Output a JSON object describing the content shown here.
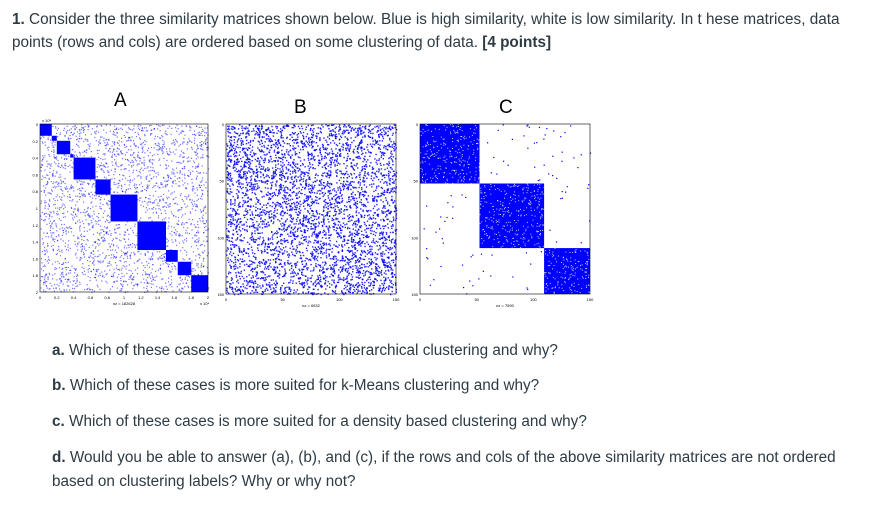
{
  "question": {
    "number": "1.",
    "text": "Consider the three similarity matrices shown below. Blue is high similarity, white is low similarity. In t hese matrices, data points (rows and cols) are ordered based on some clustering of data.",
    "points": "[4 points]"
  },
  "figures": [
    {
      "label": "A",
      "nz_text": "nz = 182628",
      "scale_top": "x 10⁴",
      "scale_right": "x 10⁴",
      "y_ticks": [
        "0",
        "0.2",
        "0.4",
        "0.6",
        "0.8",
        "1",
        "1.2",
        "1.4",
        "1.6",
        "1.8",
        "2"
      ],
      "x_ticks": [
        "0",
        "0.2",
        "0.4",
        "0.6",
        "0.8",
        "1",
        "1.2",
        "1.4",
        "1.6",
        "1.8",
        "2"
      ]
    },
    {
      "label": "B",
      "nz_text": "nz = 6932",
      "y_ticks": [
        "0",
        "50",
        "100",
        "150"
      ],
      "x_ticks": [
        "0",
        "50",
        "100",
        "150"
      ]
    },
    {
      "label": "C",
      "nz_text": "nz = 7590",
      "y_ticks": [
        "0",
        "50",
        "100",
        "150"
      ],
      "x_ticks": [
        "0",
        "50",
        "100",
        "150"
      ]
    }
  ],
  "subquestions": [
    {
      "letter": "a.",
      "text": "Which of these cases is more suited for hierarchical clustering and why?"
    },
    {
      "letter": "b.",
      "text": "Which of these cases is more suited for k-Means clustering and why?"
    },
    {
      "letter": "c.",
      "text": "Which of these cases is more suited for a density based clustering and why?"
    },
    {
      "letter": "d.",
      "text": "Would you be able to answer (a), (b), and (c), if the rows and cols of the above similarity matrices are not ordered based on clustering labels? Why or why not?"
    }
  ],
  "colors": {
    "high": "#0000ff",
    "low": "#ffffff",
    "text": "#2d3b45"
  }
}
